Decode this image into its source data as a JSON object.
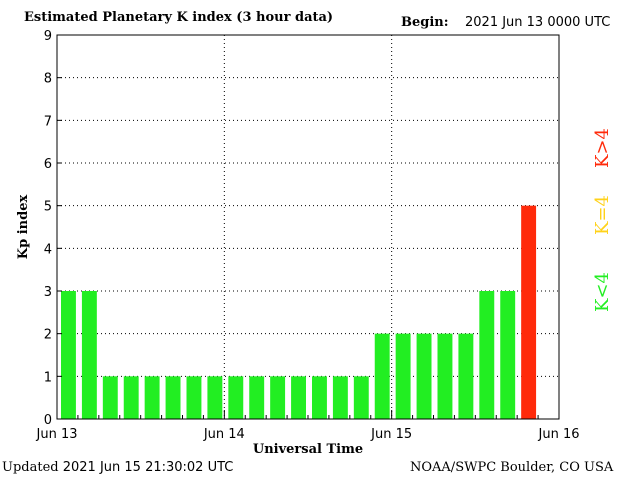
{
  "header": {
    "title": "Estimated Planetary K index (3 hour data)",
    "begin_label": "Begin:",
    "begin_value": "2021 Jun 13 0000 UTC"
  },
  "footer": {
    "updated_label": "Updated",
    "updated_value": "2021 Jun 15 21:30:02 UTC",
    "credit": "NOAA/SWPC Boulder, CO USA"
  },
  "legend": {
    "below": "K<4",
    "equal": "K=4",
    "above": "K>4"
  },
  "colors": {
    "below": "#22ee22",
    "equal": "#ffd21a",
    "above": "#ff2a0a",
    "grid": "#000000"
  },
  "chart_data": {
    "type": "bar",
    "title": "Estimated Planetary K index (3 hour data)",
    "xlabel": "Universal Time",
    "ylabel": "Kp index",
    "ylim": [
      0,
      9
    ],
    "yticks": [
      0,
      1,
      2,
      3,
      4,
      5,
      6,
      7,
      8,
      9
    ],
    "xticks": [
      "Jun 13",
      "Jun 14",
      "Jun 15",
      "Jun 16"
    ],
    "x_days": 3,
    "bins_per_day": 8,
    "grid": true,
    "values": [
      3,
      3,
      1,
      1,
      1,
      1,
      1,
      1,
      1,
      1,
      1,
      1,
      1,
      1,
      1,
      2,
      2,
      2,
      2,
      2,
      3,
      3,
      5
    ]
  }
}
